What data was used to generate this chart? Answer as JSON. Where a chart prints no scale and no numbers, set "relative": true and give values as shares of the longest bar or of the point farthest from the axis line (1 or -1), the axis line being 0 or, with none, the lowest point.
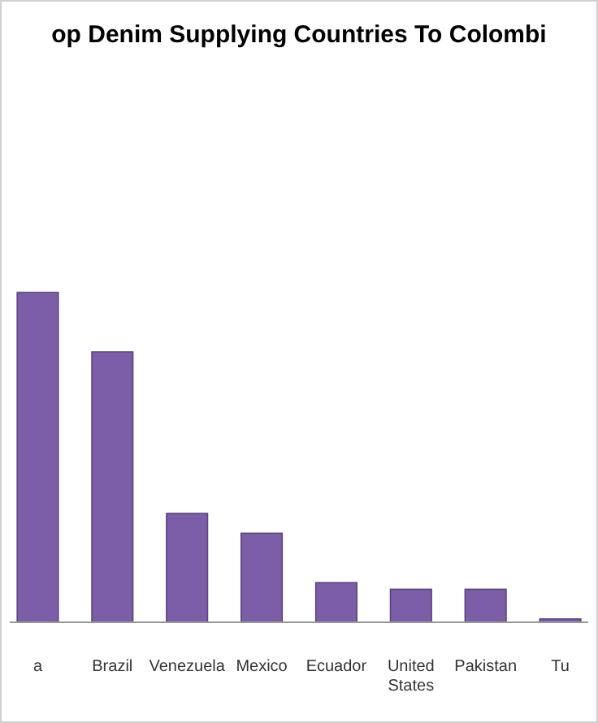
{
  "chart_data": {
    "type": "bar",
    "title": "op Denim Supplying Countries To Colombi",
    "categories": [
      "a",
      "Brazil",
      "Venezuela",
      "Mexico",
      "Ecuador",
      "United States",
      "Pakistan",
      "Tu"
    ],
    "values": [
      1,
      0.82,
      0.33,
      0.27,
      0.12,
      0.1,
      0.1,
      0.01
    ],
    "color": "#7b5ea7",
    "relative": true
  }
}
